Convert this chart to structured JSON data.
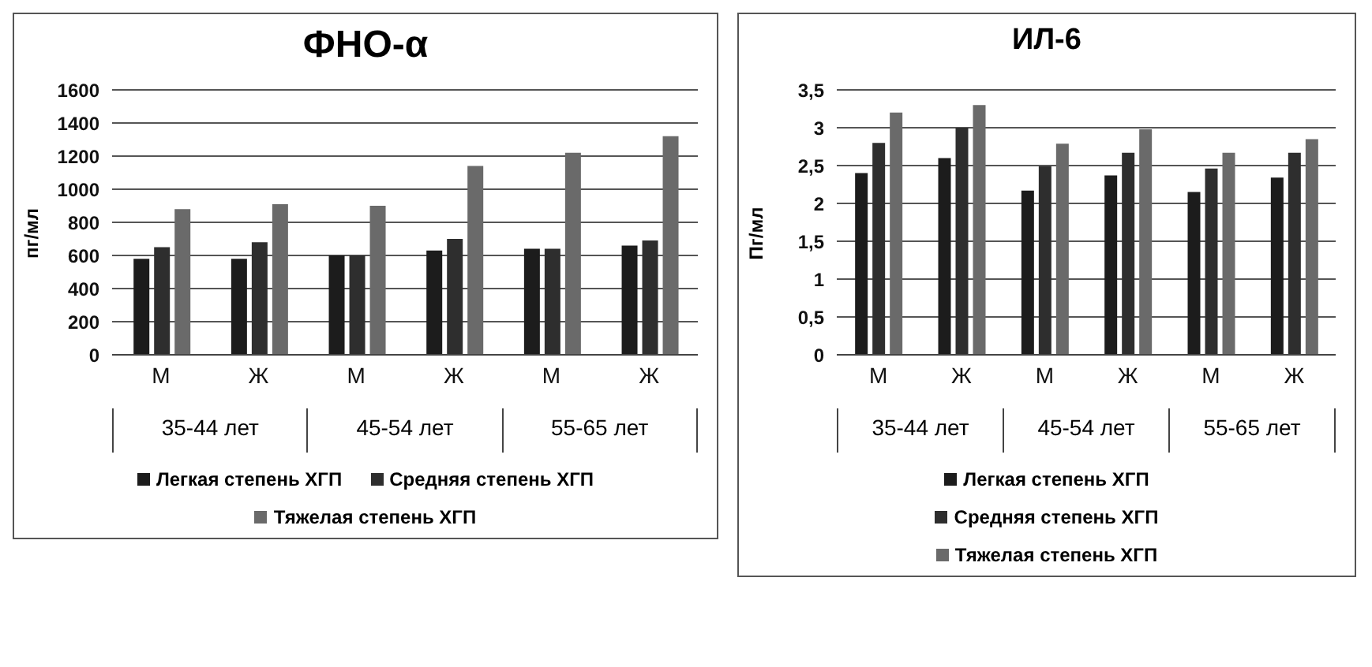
{
  "chart_data": [
    {
      "type": "bar",
      "title": "ФНО-α",
      "ylabel": "пг/мл",
      "categories": [
        "М",
        "Ж",
        "М",
        "Ж",
        "М",
        "Ж"
      ],
      "annotations": [
        "35-44 лет",
        "45-54 лет",
        "55-65 лет"
      ],
      "series": [
        {
          "name": "Легкая степень ХГП",
          "color": "#1c1c1c",
          "values": [
            580,
            580,
            600,
            630,
            640,
            660
          ]
        },
        {
          "name": "Средняя степень ХГП",
          "color": "#2e2e2e",
          "values": [
            650,
            680,
            600,
            700,
            640,
            690
          ]
        },
        {
          "name": "Тяжелая степень ХГП",
          "color": "#6a6a6a",
          "values": [
            880,
            910,
            900,
            1140,
            1220,
            1320
          ]
        }
      ],
      "ylim": [
        0,
        1600
      ],
      "yticks": [
        0,
        200,
        400,
        600,
        800,
        1000,
        1200,
        1400,
        1600
      ],
      "grid": "y",
      "legend": "bottom"
    },
    {
      "type": "bar",
      "title": "ИЛ-6",
      "ylabel": "Пг/мл",
      "categories": [
        "М",
        "Ж",
        "М",
        "Ж",
        "М",
        "Ж"
      ],
      "annotations": [
        "35-44 лет",
        "45-54 лет",
        "55-65 лет"
      ],
      "series": [
        {
          "name": "Легкая степень ХГП",
          "color": "#1c1c1c",
          "values": [
            2.4,
            2.6,
            2.17,
            2.37,
            2.15,
            2.34
          ]
        },
        {
          "name": "Средняя степень ХГП",
          "color": "#2e2e2e",
          "values": [
            2.8,
            3.0,
            2.49,
            2.67,
            2.46,
            2.67
          ]
        },
        {
          "name": "Тяжелая степень ХГП",
          "color": "#6a6a6a",
          "values": [
            3.2,
            3.3,
            2.79,
            2.98,
            2.67,
            2.85
          ]
        }
      ],
      "ylim": [
        0,
        3.5
      ],
      "yticks": [
        0,
        {
          "value": 0.5,
          "label": "0,5"
        },
        1,
        {
          "value": 1.5,
          "label": "1,5"
        },
        2,
        {
          "value": 2.5,
          "label": "2,5"
        },
        3,
        {
          "value": 3.5,
          "label": "3,5"
        }
      ],
      "grid": "y",
      "legend": "bottom"
    }
  ]
}
